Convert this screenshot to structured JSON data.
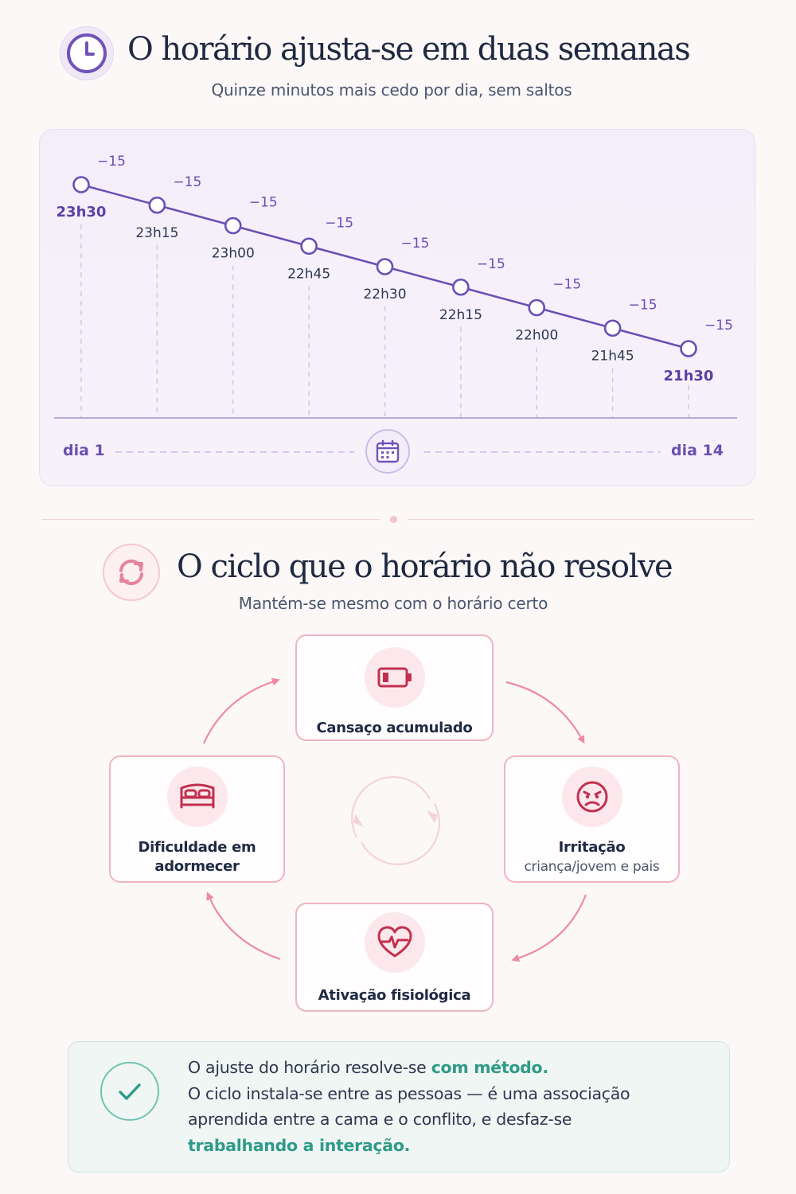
{
  "schedule": {
    "title": "O horário ajusta-se em duas semanas",
    "subtitle": "Quinze minutos mais cedo por dia, sem saltos",
    "icon": "clock-icon",
    "start_label": "dia 1",
    "end_label": "dia 14",
    "calendar_icon": "calendar-icon",
    "points": [
      {
        "time": "23h30",
        "delta": "−15",
        "emphasis": true
      },
      {
        "time": "23h15",
        "delta": "−15"
      },
      {
        "time": "23h00",
        "delta": "−15"
      },
      {
        "time": "22h45",
        "delta": "−15"
      },
      {
        "time": "22h30",
        "delta": "−15"
      },
      {
        "time": "22h15",
        "delta": "−15"
      },
      {
        "time": "22h00",
        "delta": "−15"
      },
      {
        "time": "21h45",
        "delta": "−15"
      },
      {
        "time": "21h30",
        "delta": "−15",
        "emphasis": true
      }
    ]
  },
  "cycle": {
    "title": "O ciclo que o horário não resolve",
    "subtitle": "Mantém-se mesmo com o horário certo",
    "icon": "refresh-icon",
    "nodes": {
      "top": {
        "label": "Cansaço acumulado",
        "icon": "battery-low-icon"
      },
      "right": {
        "label": "Irritação",
        "sublabel": "criança/jovem e pais",
        "icon": "angry-face-icon"
      },
      "bottom": {
        "label": "Ativação fisiológica",
        "icon": "heart-pulse-icon"
      },
      "left": {
        "label_line1": "Dificuldade em",
        "label_line2": "adormecer",
        "icon": "bed-icon"
      }
    }
  },
  "note": {
    "icon": "check-icon",
    "line1_a": "O ajuste do horário resolve-se ",
    "line1_b": "com método.",
    "line2": "O ciclo instala-se entre as pessoas — é uma associação",
    "line3": "aprendida entre a cama e o conflito, e desfaz-se",
    "line4": "trabalhando a interação."
  },
  "colors": {
    "purple": "#7153b8",
    "pink": "#e7839d",
    "teal": "#2f9a8a"
  }
}
